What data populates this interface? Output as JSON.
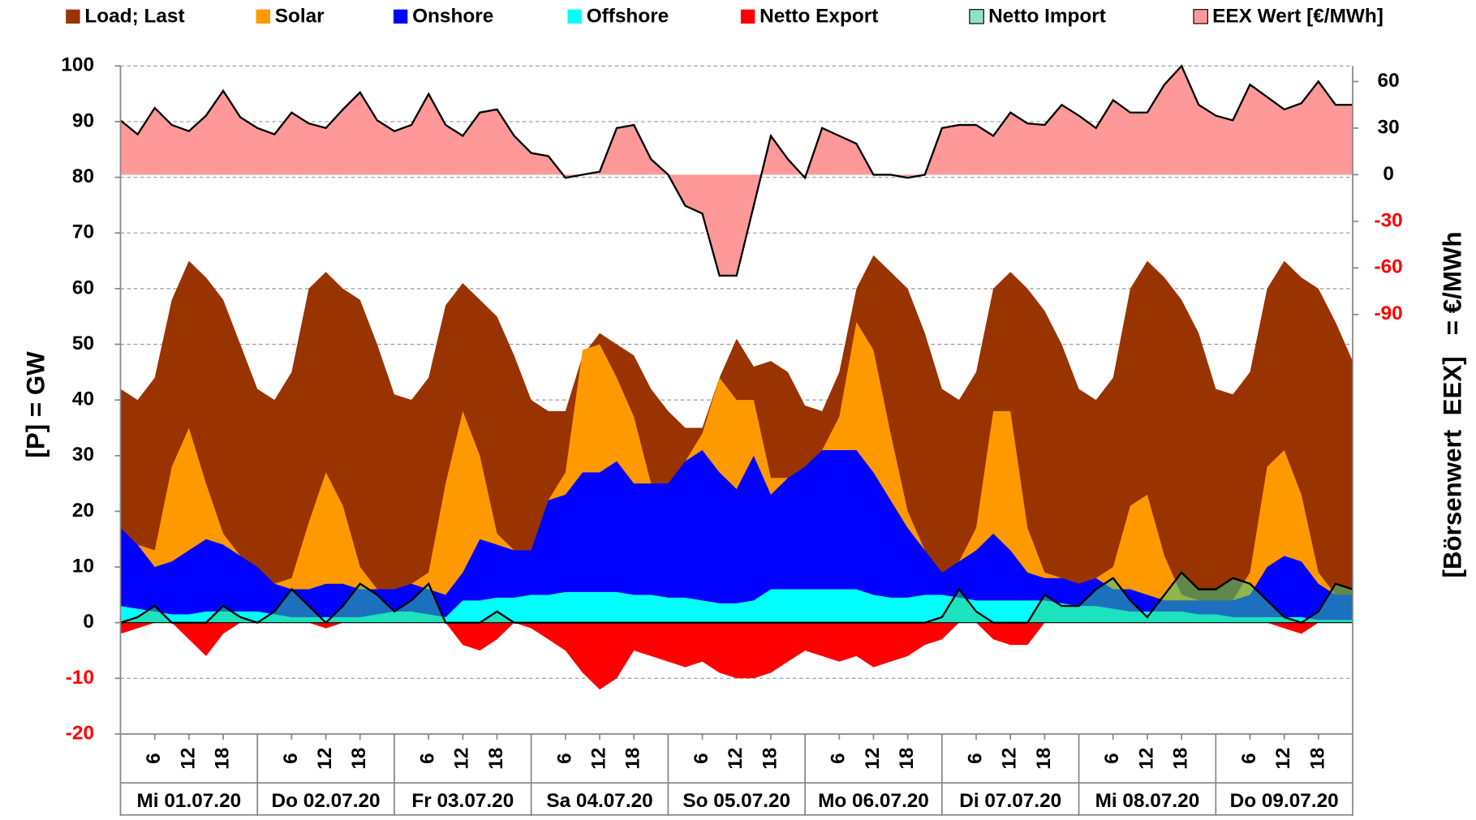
{
  "chart_data": {
    "type": "area",
    "y_label": "[P] = GW",
    "y2_label": "[Börsenwert  EEX]   = €/MWh",
    "ylim": [
      -20,
      100
    ],
    "yticks": [
      -20,
      -10,
      0,
      10,
      20,
      30,
      40,
      50,
      60,
      70,
      80,
      90,
      100
    ],
    "y2lim": [
      -360,
      70
    ],
    "y2ticks": [
      -90,
      -60,
      -30,
      0,
      30,
      60
    ],
    "negative_tick_color": "#ff0000",
    "grid": true,
    "xlim": [
      0,
      216
    ],
    "x": [
      0,
      3,
      6,
      9,
      12,
      15,
      18,
      21,
      24,
      27,
      30,
      33,
      36,
      39,
      42,
      45,
      48,
      51,
      54,
      57,
      60,
      63,
      66,
      69,
      72,
      75,
      78,
      81,
      84,
      87,
      90,
      93,
      96,
      99,
      102,
      105,
      108,
      111,
      114,
      117,
      120,
      123,
      126,
      129,
      132,
      135,
      138,
      141,
      144,
      147,
      150,
      153,
      156,
      159,
      162,
      165,
      168,
      171,
      174,
      177,
      180,
      183,
      186,
      189,
      192,
      195,
      198,
      201,
      204,
      207,
      210,
      213,
      216
    ],
    "xticks": [
      {
        "value": 6,
        "label": "6"
      },
      {
        "value": 12,
        "label": "12"
      },
      {
        "value": 18,
        "label": "18"
      },
      {
        "value": 30,
        "label": "6"
      },
      {
        "value": 36,
        "label": "12"
      },
      {
        "value": 42,
        "label": "18"
      },
      {
        "value": 54,
        "label": "6"
      },
      {
        "value": 60,
        "label": "12"
      },
      {
        "value": 66,
        "label": "18"
      },
      {
        "value": 78,
        "label": "6"
      },
      {
        "value": 84,
        "label": "12"
      },
      {
        "value": 90,
        "label": "18"
      },
      {
        "value": 102,
        "label": "6"
      },
      {
        "value": 108,
        "label": "12"
      },
      {
        "value": 114,
        "label": "18"
      },
      {
        "value": 126,
        "label": "6"
      },
      {
        "value": 132,
        "label": "12"
      },
      {
        "value": 138,
        "label": "18"
      },
      {
        "value": 150,
        "label": "6"
      },
      {
        "value": 156,
        "label": "12"
      },
      {
        "value": 162,
        "label": "18"
      },
      {
        "value": 174,
        "label": "6"
      },
      {
        "value": 180,
        "label": "12"
      },
      {
        "value": 186,
        "label": "18"
      },
      {
        "value": 198,
        "label": "6"
      },
      {
        "value": 204,
        "label": "12"
      },
      {
        "value": 210,
        "label": "18"
      }
    ],
    "day_labels": [
      "Mi 01.07.20",
      "Do 02.07.20",
      "Fr 03.07.20",
      "Sa 04.07.20",
      "So 05.07.20",
      "Mo 06.07.20",
      "Di 07.07.20",
      "Mi 08.07.20",
      "Do 09.07.20"
    ],
    "series": [
      {
        "name": "Load; Last",
        "color": "#993300",
        "values": [
          42,
          40,
          44,
          58,
          65,
          62,
          58,
          50,
          42,
          40,
          45,
          60,
          63,
          60,
          58,
          50,
          41,
          40,
          44,
          57,
          61,
          58,
          55,
          48,
          40,
          38,
          38,
          48,
          52,
          50,
          48,
          42,
          38,
          35,
          35,
          44,
          51,
          46,
          47,
          45,
          39,
          38,
          45,
          60,
          66,
          63,
          60,
          52,
          42,
          40,
          45,
          60,
          63,
          60,
          56,
          50,
          42,
          40,
          44,
          60,
          65,
          62,
          58,
          52,
          42,
          41,
          45,
          60,
          65,
          62,
          60,
          54,
          47
        ]
      },
      {
        "name": "Solar",
        "color": "#ff9900",
        "stacked": true,
        "values": [
          0,
          0,
          3,
          17,
          22,
          10,
          2,
          0,
          0,
          0,
          2,
          12,
          20,
          14,
          4,
          0,
          0,
          0,
          3,
          20,
          29,
          15,
          2,
          0,
          0,
          0,
          4,
          22,
          23,
          15,
          12,
          0,
          0,
          0,
          3,
          17,
          16,
          10,
          3,
          0,
          0,
          0,
          6,
          23,
          22,
          12,
          3,
          0,
          0,
          0,
          4,
          22,
          25,
          8,
          1,
          0,
          0,
          0,
          4,
          15,
          18,
          8,
          1,
          0,
          0,
          0,
          4,
          18,
          19,
          12,
          2,
          0,
          0
        ]
      },
      {
        "name": "Onshore",
        "color": "#0000ff",
        "stacked": true,
        "values": [
          14,
          11.5,
          8,
          9.5,
          11.5,
          13,
          12,
          10,
          8,
          5.5,
          5,
          5,
          6,
          6,
          5,
          4.5,
          4,
          5,
          4.5,
          4,
          5,
          11,
          9.5,
          8.5,
          8,
          17,
          17.5,
          21.5,
          21.5,
          23.5,
          20,
          20,
          20.5,
          24.5,
          27,
          23.5,
          20.5,
          26,
          17,
          20,
          22,
          25,
          25,
          25,
          22,
          17.5,
          12.5,
          8,
          4,
          6.5,
          9,
          12,
          9,
          5,
          4,
          4.5,
          4,
          5,
          3.5,
          4,
          3,
          2,
          2,
          2.5,
          2.5,
          3,
          4,
          9,
          11,
          10,
          6.5,
          4.5,
          4.5
        ]
      },
      {
        "name": "Offshore",
        "color": "#00ffff",
        "stacked": true,
        "values": [
          3,
          2.5,
          2,
          1.5,
          1.5,
          2,
          2,
          2,
          2,
          1.5,
          1,
          1,
          1,
          1,
          1,
          1.5,
          2,
          2,
          1.5,
          1,
          4,
          4,
          4.5,
          4.5,
          5,
          5,
          5.5,
          5.5,
          5.5,
          5.5,
          5,
          5,
          4.5,
          4.5,
          4,
          3.5,
          3.5,
          4,
          6,
          6,
          6,
          6,
          6,
          6,
          5,
          4.5,
          4.5,
          5,
          5,
          4.5,
          4,
          4,
          4,
          4,
          4,
          3.5,
          3,
          3,
          2.5,
          2,
          2,
          2,
          2,
          1.5,
          1.5,
          1,
          1,
          1,
          1,
          1,
          0.5,
          0.5,
          0.5
        ]
      },
      {
        "name": "Netto Export",
        "color": "#ff0000",
        "values": [
          -2,
          -1,
          0,
          0,
          -3,
          -6,
          -2,
          0,
          0,
          0,
          0,
          0,
          -1,
          0,
          0,
          0,
          0,
          0,
          0,
          0,
          -4,
          -5,
          -3,
          0,
          -1,
          -3,
          -5,
          -9,
          -12,
          -10,
          -5,
          -6,
          -7,
          -8,
          -7,
          -9,
          -10,
          -10,
          -9,
          -7,
          -5,
          -6,
          -7,
          -6,
          -8,
          -7,
          -6,
          -4,
          -3,
          0,
          0,
          -3,
          -4,
          -4,
          0,
          0,
          0,
          0,
          0,
          0,
          0,
          0,
          0,
          0,
          0,
          0,
          0,
          0,
          -1,
          -2,
          0,
          0,
          0
        ]
      },
      {
        "name": "Netto Import",
        "color": "#33cc88",
        "opacity": 0.55,
        "outline": "#000000",
        "values": [
          0,
          1,
          3,
          0,
          0,
          0,
          3,
          1,
          0,
          2,
          6,
          3,
          0,
          3,
          7,
          5,
          2,
          4,
          7,
          0,
          0,
          0,
          2,
          0,
          0,
          0,
          0,
          0,
          0,
          0,
          0,
          0,
          0,
          0,
          0,
          0,
          0,
          0,
          0,
          0,
          0,
          0,
          0,
          0,
          0,
          0,
          0,
          0,
          1,
          6,
          2,
          0,
          0,
          0,
          5,
          3,
          3,
          6,
          8,
          4,
          1,
          5,
          9,
          6,
          6,
          8,
          7,
          4,
          1,
          0,
          2,
          7,
          6
        ]
      },
      {
        "name": "EEX Wert [€/MWh]",
        "color": "#ff9999",
        "outline": "#000000",
        "axis": "y2",
        "values": [
          35,
          26,
          43,
          32,
          28,
          38,
          54,
          37,
          30,
          26,
          40,
          33,
          30,
          42,
          53,
          35,
          28,
          32,
          52,
          32,
          25,
          40,
          42,
          25,
          14,
          12,
          -2,
          0,
          2,
          30,
          32,
          10,
          0,
          -20,
          -25,
          -65,
          -65,
          -20,
          25,
          10,
          -2,
          30,
          25,
          20,
          0,
          0,
          -2,
          0,
          30,
          32,
          32,
          25,
          40,
          33,
          32,
          45,
          38,
          30,
          48,
          40,
          40,
          58,
          70,
          45,
          38,
          35,
          58,
          50,
          42,
          46,
          60,
          45,
          45
        ]
      }
    ]
  }
}
